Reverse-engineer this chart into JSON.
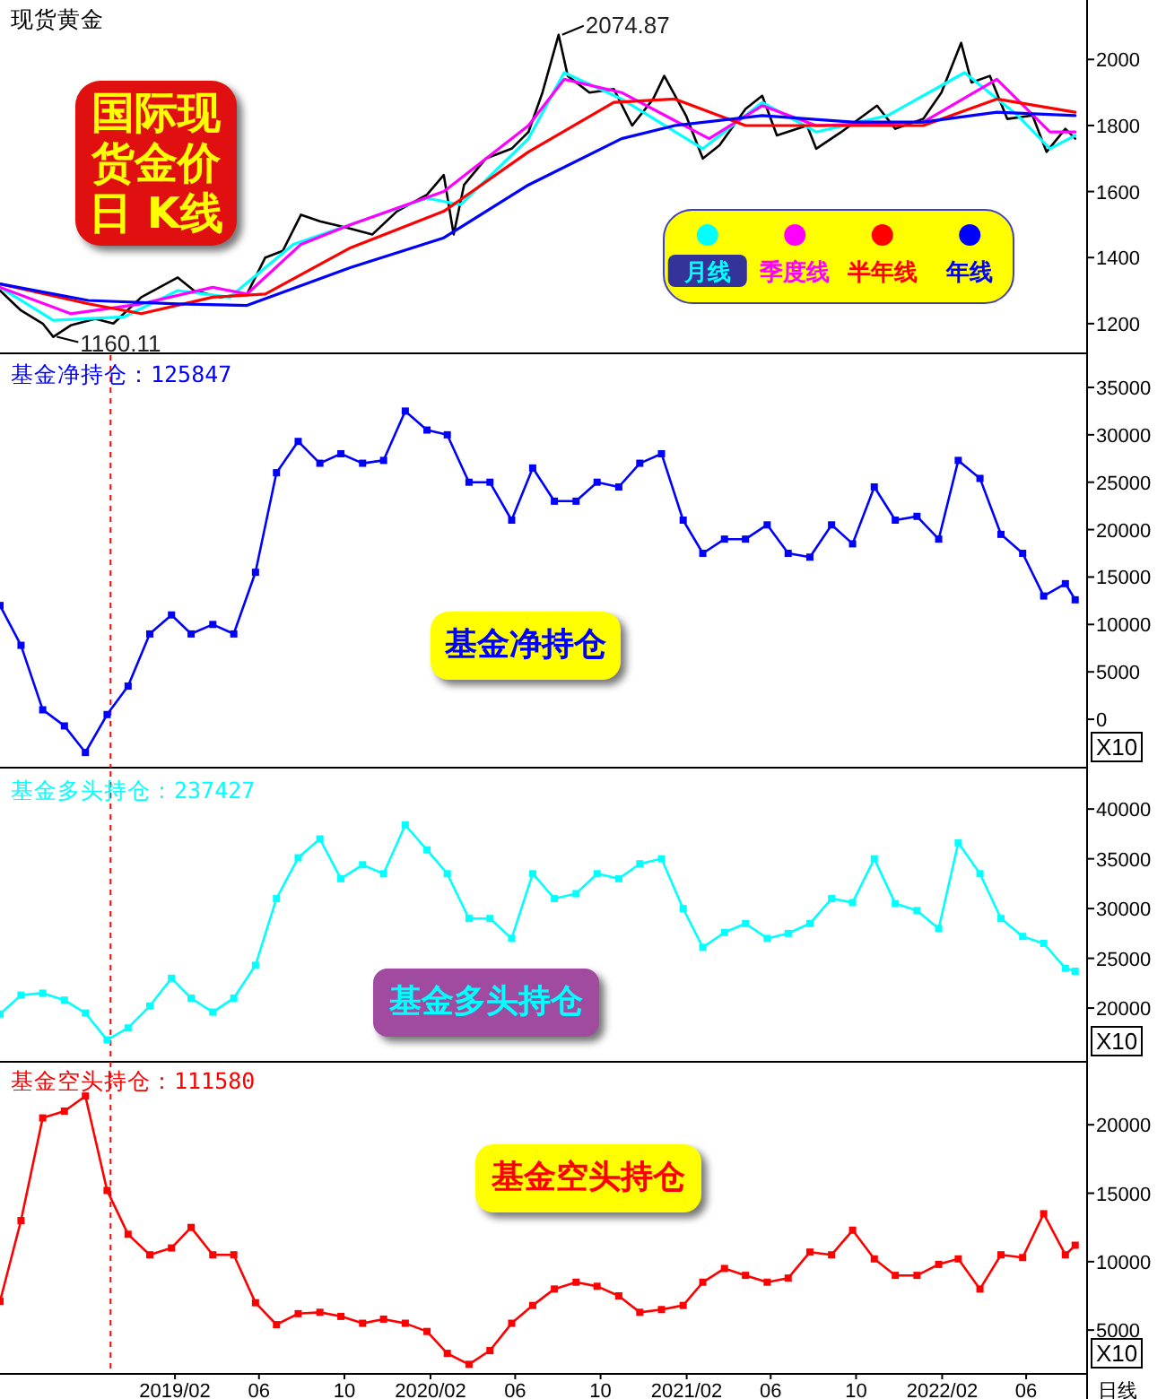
{
  "chart_data": [
    {
      "type": "line",
      "title": "现货黄金",
      "xlim": [
        "2018-06-01",
        "2022-09-01"
      ],
      "ylim": [
        1110,
        2180
      ],
      "yticks": [
        1200,
        1400,
        1600,
        1800,
        2000
      ],
      "tick_labels": "y",
      "legend": "bottom right",
      "annotations": [
        "国际现货金价日 K线",
        {
          "text": "2074.87",
          "x": "2020-08-07",
          "y": 2074.87
        },
        {
          "text": "1160.11",
          "x": "2018-08-16",
          "y": 1160.11
        }
      ],
      "series": [
        {
          "color": "#000000",
          "x": [
            "2018-06-01",
            "2018-07-01",
            "2018-08-01",
            "2018-08-16",
            "2018-09-10",
            "2018-10-15",
            "2018-11-10",
            "2018-12-20",
            "2019-02-10",
            "2019-03-05",
            "2019-04-12",
            "2019-05-20",
            "2019-06-15",
            "2019-07-10",
            "2019-08-05",
            "2019-09-01",
            "2019-10-10",
            "2019-11-15",
            "2019-12-20",
            "2020-02-01",
            "2020-02-25",
            "2020-03-10",
            "2020-03-25",
            "2020-04-25",
            "2020-06-01",
            "2020-06-25",
            "2020-07-15",
            "2020-08-07",
            "2020-08-20",
            "2020-09-20",
            "2020-10-25",
            "2020-11-20",
            "2020-12-20",
            "2021-01-05",
            "2021-02-05",
            "2021-03-01",
            "2021-03-25",
            "2021-05-01",
            "2021-05-25",
            "2021-06-15",
            "2021-07-28",
            "2021-08-10",
            "2021-09-15",
            "2021-11-05",
            "2021-12-01",
            "2022-01-10",
            "2022-02-05",
            "2022-03-05",
            "2022-03-20",
            "2022-04-15",
            "2022-05-10",
            "2022-06-15",
            "2022-07-05",
            "2022-08-01",
            "2022-08-15"
          ],
          "values": [
            1300,
            1240,
            1200,
            1160.11,
            1195,
            1215,
            1200,
            1280,
            1340,
            1300,
            1280,
            1290,
            1400,
            1420,
            1530,
            1510,
            1490,
            1470,
            1540,
            1590,
            1650,
            1470,
            1620,
            1700,
            1730,
            1780,
            1900,
            2074.87,
            1950,
            1900,
            1910,
            1800,
            1880,
            1950,
            1830,
            1700,
            1740,
            1850,
            1890,
            1770,
            1800,
            1730,
            1780,
            1860,
            1790,
            1820,
            1900,
            2050,
            1930,
            1950,
            1820,
            1830,
            1720,
            1790,
            1760
          ]
        },
        {
          "name": "月线",
          "color": "#00ffff",
          "x": [
            "2018-06-01",
            "2018-08-16",
            "2018-11-25",
            "2019-02-10",
            "2019-04-25",
            "2019-07-25",
            "2019-10-15",
            "2020-02-01",
            "2020-03-20",
            "2020-06-25",
            "2020-08-15",
            "2020-11-05",
            "2021-03-01",
            "2021-05-25",
            "2021-08-10",
            "2021-11-20",
            "2022-03-10",
            "2022-05-25",
            "2022-07-10",
            "2022-08-15"
          ],
          "values": [
            1310,
            1210,
            1220,
            1300,
            1280,
            1440,
            1500,
            1580,
            1560,
            1760,
            1960,
            1880,
            1730,
            1870,
            1780,
            1830,
            1960,
            1830,
            1730,
            1770
          ]
        },
        {
          "name": "季度线",
          "color": "#ff00ff",
          "x": [
            "2018-06-01",
            "2018-09-10",
            "2018-12-20",
            "2019-04-01",
            "2019-05-20",
            "2019-08-05",
            "2019-10-15",
            "2020-02-25",
            "2020-06-25",
            "2020-08-15",
            "2020-11-05",
            "2021-03-10",
            "2021-05-25",
            "2021-08-10",
            "2022-01-10",
            "2022-04-25",
            "2022-07-10",
            "2022-08-15"
          ],
          "values": [
            1310,
            1230,
            1260,
            1310,
            1290,
            1440,
            1500,
            1600,
            1800,
            1940,
            1900,
            1760,
            1860,
            1800,
            1810,
            1940,
            1780,
            1780
          ]
        },
        {
          "name": "半年线",
          "color": "#ff0000",
          "x": [
            "2018-06-01",
            "2018-10-05",
            "2018-12-20",
            "2019-04-01",
            "2019-06-15",
            "2019-10-15",
            "2020-02-25",
            "2020-06-25",
            "2020-10-25",
            "2021-01-20",
            "2021-05-01",
            "2021-09-05",
            "2022-01-10",
            "2022-04-25",
            "2022-08-15"
          ],
          "values": [
            1320,
            1260,
            1230,
            1280,
            1290,
            1430,
            1540,
            1720,
            1870,
            1880,
            1800,
            1800,
            1800,
            1880,
            1840
          ]
        },
        {
          "name": "年线",
          "color": "#0000ff",
          "x": [
            "2018-06-01",
            "2018-10-05",
            "2019-02-10",
            "2019-05-20",
            "2019-10-15",
            "2020-02-25",
            "2020-06-25",
            "2020-11-05",
            "2021-01-20",
            "2021-05-25",
            "2021-10-01",
            "2022-01-10",
            "2022-04-25",
            "2022-08-15"
          ],
          "values": [
            1320,
            1270,
            1260,
            1255,
            1370,
            1460,
            1620,
            1760,
            1800,
            1830,
            1810,
            1810,
            1840,
            1830
          ]
        }
      ]
    },
    {
      "type": "line",
      "title": "基金净持仓：125847",
      "xlim": [
        "2018-06-01",
        "2022-09-01"
      ],
      "ylim": [
        -5100,
        38400
      ],
      "yticks": [
        0,
        5000,
        10000,
        15000,
        20000,
        25000,
        30000,
        35000
      ],
      "tick_labels": "y",
      "marker": "square",
      "annotations": [
        "基金净持仓",
        "X10"
      ],
      "ref_lines": [
        {
          "axis": "x",
          "value": "2018-11-06",
          "color": "#ff0000",
          "line_style": "dashed"
        }
      ],
      "x": [
        "2018-06-01",
        "2018-07-01",
        "2018-08-01",
        "2018-09-01",
        "2018-10-01",
        "2018-11-01",
        "2018-12-01",
        "2019-01-01",
        "2019-02-01",
        "2019-03-01",
        "2019-04-01",
        "2019-05-01",
        "2019-06-01",
        "2019-07-01",
        "2019-08-01",
        "2019-09-01",
        "2019-10-01",
        "2019-11-01",
        "2019-12-01",
        "2020-01-01",
        "2020-02-01",
        "2020-03-01",
        "2020-04-01",
        "2020-05-01",
        "2020-06-01",
        "2020-07-01",
        "2020-08-01",
        "2020-09-01",
        "2020-10-01",
        "2020-11-01",
        "2020-12-01",
        "2021-01-01",
        "2021-02-01",
        "2021-03-01",
        "2021-04-01",
        "2021-05-01",
        "2021-06-01",
        "2021-07-01",
        "2021-08-01",
        "2021-09-01",
        "2021-10-01",
        "2021-11-01",
        "2021-12-01",
        "2022-01-01",
        "2022-02-01",
        "2022-03-01",
        "2022-04-01",
        "2022-05-01",
        "2022-06-01",
        "2022-07-01",
        "2022-08-01",
        "2022-08-15"
      ],
      "series": [
        {
          "color": "#0000ff",
          "values": [
            12000,
            7800,
            1000,
            -700,
            -3500,
            500,
            3500,
            9000,
            11000,
            9000,
            10000,
            9000,
            15500,
            26000,
            29300,
            27000,
            28000,
            27000,
            27300,
            32500,
            30500,
            30000,
            25000,
            25000,
            21000,
            26500,
            23000,
            23000,
            25000,
            24500,
            27000,
            28000,
            21000,
            17500,
            19000,
            19000,
            20500,
            17500,
            17100,
            20500,
            18500,
            24500,
            21000,
            21400,
            19000,
            27300,
            25400,
            19500,
            17500,
            13000,
            14300,
            12600
          ]
        }
      ]
    },
    {
      "type": "line",
      "title": "基金多头持仓：237427",
      "xlim": [
        "2018-06-01",
        "2022-09-01"
      ],
      "ylim": [
        14600,
        43800
      ],
      "yticks": [
        20000,
        25000,
        30000,
        35000,
        40000
      ],
      "tick_labels": "y",
      "marker": "square",
      "annotations": [
        "基金多头持仓",
        "X10"
      ],
      "ref_lines": [
        {
          "axis": "x",
          "value": "2018-11-06",
          "color": "#ff0000",
          "line_style": "dashed"
        }
      ],
      "x": [
        "2018-06-01",
        "2018-07-01",
        "2018-08-01",
        "2018-09-01",
        "2018-10-01",
        "2018-11-01",
        "2018-12-01",
        "2019-01-01",
        "2019-02-01",
        "2019-03-01",
        "2019-04-01",
        "2019-05-01",
        "2019-06-01",
        "2019-07-01",
        "2019-08-01",
        "2019-09-01",
        "2019-10-01",
        "2019-11-01",
        "2019-12-01",
        "2020-01-01",
        "2020-02-01",
        "2020-03-01",
        "2020-04-01",
        "2020-05-01",
        "2020-06-01",
        "2020-07-01",
        "2020-08-01",
        "2020-09-01",
        "2020-10-01",
        "2020-11-01",
        "2020-12-01",
        "2021-01-01",
        "2021-02-01",
        "2021-03-01",
        "2021-04-01",
        "2021-05-01",
        "2021-06-01",
        "2021-07-01",
        "2021-08-01",
        "2021-09-01",
        "2021-10-01",
        "2021-11-01",
        "2021-12-01",
        "2022-01-01",
        "2022-02-01",
        "2022-03-01",
        "2022-04-01",
        "2022-05-01",
        "2022-06-01",
        "2022-07-01",
        "2022-08-01",
        "2022-08-15"
      ],
      "series": [
        {
          "color": "#00ffff",
          "values": [
            19400,
            21300,
            21500,
            20800,
            19500,
            16800,
            18000,
            20200,
            23000,
            21000,
            19600,
            21000,
            24300,
            31000,
            35100,
            37000,
            33000,
            34400,
            33500,
            38400,
            35900,
            33500,
            29000,
            29000,
            27000,
            33500,
            31000,
            31500,
            33500,
            33000,
            34500,
            35000,
            30000,
            26100,
            27600,
            28500,
            27000,
            27500,
            28500,
            31000,
            30600,
            35000,
            30500,
            29800,
            28000,
            36600,
            33500,
            29000,
            27200,
            26500,
            24000,
            23700
          ]
        }
      ]
    },
    {
      "type": "line",
      "title": "基金空头持仓：111580",
      "xlabel": "日线",
      "xlim": [
        "2018-06-01",
        "2022-09-01"
      ],
      "ylim": [
        1800,
        24600
      ],
      "yticks": [
        5000,
        10000,
        15000,
        20000
      ],
      "marker": "square",
      "xticks": [
        {
          "value": "2019-02-06",
          "label": "2019/02"
        },
        {
          "value": "2019-06-06",
          "label": "06"
        },
        {
          "value": "2019-10-06",
          "label": "10"
        },
        {
          "value": "2020-02-06",
          "label": "2020/02"
        },
        {
          "value": "2020-06-06",
          "label": "06"
        },
        {
          "value": "2020-10-06",
          "label": "10"
        },
        {
          "value": "2021-02-06",
          "label": "2021/02"
        },
        {
          "value": "2021-06-06",
          "label": "06"
        },
        {
          "value": "2021-10-06",
          "label": "10"
        },
        {
          "value": "2022-02-06",
          "label": "2022/02"
        },
        {
          "value": "2022-06-06",
          "label": "06"
        }
      ],
      "annotations": [
        "基金空头持仓",
        "X10"
      ],
      "ref_lines": [
        {
          "axis": "x",
          "value": "2018-11-06",
          "color": "#ff0000",
          "line_style": "dashed"
        }
      ],
      "x": [
        "2018-06-01",
        "2018-07-01",
        "2018-08-01",
        "2018-09-01",
        "2018-10-01",
        "2018-11-01",
        "2018-12-01",
        "2019-01-01",
        "2019-02-01",
        "2019-03-01",
        "2019-04-01",
        "2019-05-01",
        "2019-06-01",
        "2019-07-01",
        "2019-08-01",
        "2019-09-01",
        "2019-10-01",
        "2019-11-01",
        "2019-12-01",
        "2020-01-01",
        "2020-02-01",
        "2020-03-01",
        "2020-04-01",
        "2020-05-01",
        "2020-06-01",
        "2020-07-01",
        "2020-08-01",
        "2020-09-01",
        "2020-10-01",
        "2020-11-01",
        "2020-12-01",
        "2021-01-01",
        "2021-02-01",
        "2021-03-01",
        "2021-04-01",
        "2021-05-01",
        "2021-06-01",
        "2021-07-01",
        "2021-08-01",
        "2021-09-01",
        "2021-10-01",
        "2021-11-01",
        "2021-12-01",
        "2022-01-01",
        "2022-02-01",
        "2022-03-01",
        "2022-04-01",
        "2022-05-01",
        "2022-06-01",
        "2022-07-01",
        "2022-08-01",
        "2022-08-15"
      ],
      "series": [
        {
          "color": "#ff0000",
          "values": [
            7100,
            13000,
            20500,
            21000,
            22100,
            15200,
            12000,
            10500,
            11000,
            12500,
            10500,
            10500,
            7000,
            5400,
            6200,
            6300,
            6000,
            5500,
            5800,
            5500,
            4900,
            3300,
            2500,
            3500,
            5500,
            6800,
            8000,
            8500,
            8200,
            7500,
            6300,
            6500,
            6800,
            8500,
            9500,
            9000,
            8500,
            8800,
            10700,
            10500,
            12300,
            10200,
            9000,
            9000,
            9800,
            10200,
            8000,
            10500,
            10300,
            13500,
            10500,
            11200
          ]
        }
      ]
    }
  ]
}
